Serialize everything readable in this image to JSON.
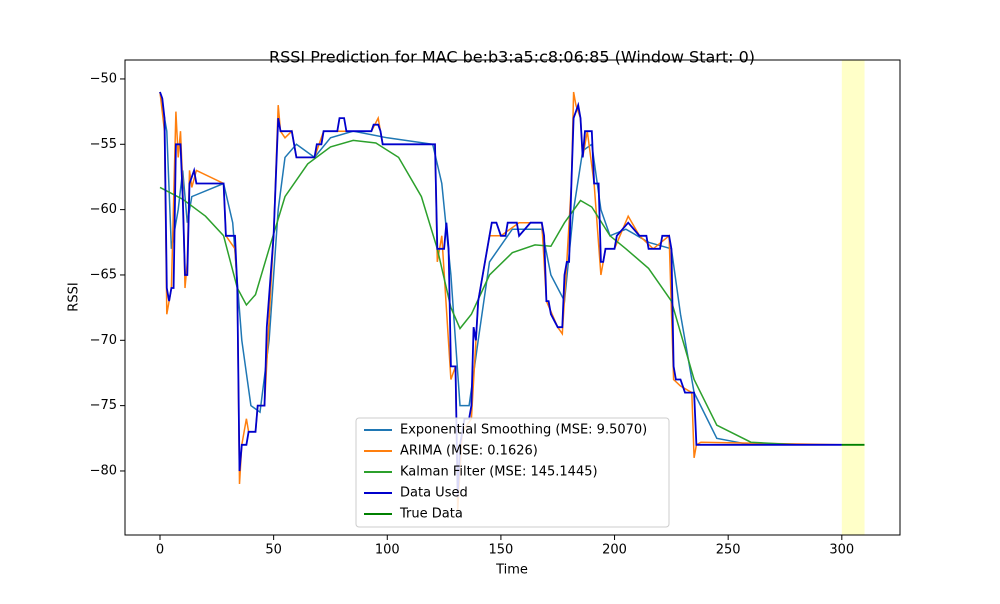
{
  "chart_data": {
    "type": "line",
    "title": "RSSI Prediction for MAC be:b3:a5:c8:06:85 (Window Start: 0)",
    "x_label": "Time",
    "y_label": "RSSI",
    "xlim": [
      -15.4,
      325.6
    ],
    "ylim": [
      -84.9,
      -48.55
    ],
    "xticks": [
      0,
      50,
      100,
      150,
      200,
      250,
      300
    ],
    "yticks": [
      {
        "value": -50,
        "label": "−50"
      },
      {
        "value": -55,
        "label": "−55"
      },
      {
        "value": -60,
        "label": "−60"
      },
      {
        "value": -65,
        "label": "−65"
      },
      {
        "value": -70,
        "label": "−70"
      },
      {
        "value": -75,
        "label": "−75"
      },
      {
        "value": -80,
        "label": "−80"
      }
    ],
    "shaded_region": {
      "x": [
        300,
        310
      ],
      "color": "#ffffc8"
    },
    "series": [
      {
        "name": "Exponential Smoothing (MSE: 9.5070)",
        "color": "#1f77b4",
        "x": [
          0,
          3,
          5,
          8,
          10,
          12,
          14,
          28,
          32,
          36,
          40,
          44,
          48,
          52,
          55,
          60,
          68,
          75,
          85,
          100,
          120,
          124,
          128,
          132,
          136,
          140,
          145,
          155,
          168,
          172,
          178,
          182,
          186,
          190,
          194,
          198,
          205,
          215,
          225,
          229,
          235,
          245,
          260,
          300
        ],
        "values": [
          -51,
          -54,
          -63,
          -60,
          -57,
          -61,
          -59,
          -58,
          -61,
          -70,
          -75,
          -75.5,
          -70,
          -60,
          -56,
          -55,
          -56,
          -54.5,
          -54,
          -54.5,
          -55,
          -58,
          -65,
          -75,
          -75,
          -70,
          -64,
          -61.5,
          -61.5,
          -65,
          -67,
          -60,
          -55.5,
          -55,
          -60,
          -62,
          -61.5,
          -62.5,
          -63,
          -68,
          -74,
          -77.5,
          -78,
          -78
        ]
      },
      {
        "name": "ARIMA (MSE: 0.1626)",
        "color": "#ff7f0e",
        "x": [
          0,
          2,
          3,
          5,
          7,
          8,
          9,
          10,
          11,
          12,
          13,
          14,
          16,
          28,
          29,
          33,
          34,
          35,
          36,
          38,
          39,
          42,
          43,
          46,
          50,
          52,
          53,
          55,
          58,
          60,
          68,
          72,
          78,
          82,
          93,
          96,
          98,
          121,
          122,
          124,
          128,
          130,
          131,
          133,
          137,
          140,
          145,
          150,
          158,
          168,
          170,
          175,
          177,
          179,
          181,
          182,
          183,
          185,
          186,
          188,
          191,
          194,
          196,
          200,
          206,
          211,
          217,
          224,
          226,
          229,
          234,
          235,
          236,
          238,
          300
        ],
        "values": [
          -51,
          -54,
          -68,
          -66,
          -52.5,
          -56,
          -54,
          -58,
          -66,
          -64,
          -57,
          -58.3,
          -57,
          -58,
          -62,
          -63,
          -66,
          -81,
          -78,
          -76,
          -77,
          -77,
          -75,
          -75,
          -62,
          -52,
          -54,
          -54.5,
          -54,
          -56,
          -56,
          -54,
          -54,
          -54,
          -54,
          -53,
          -55,
          -55,
          -64,
          -62,
          -73,
          -72,
          -83,
          -77,
          -76,
          -67,
          -62,
          -62,
          -61,
          -61,
          -67,
          -69,
          -69.5,
          -64,
          -58,
          -51,
          -52,
          -53,
          -56,
          -54,
          -58,
          -65,
          -63,
          -63,
          -60.5,
          -62,
          -63,
          -62,
          -73,
          -73.5,
          -74,
          -79,
          -78,
          -77.8,
          -78
        ]
      },
      {
        "name": "Kalman Filter (MSE: 145.1445)",
        "color": "#2ca02c",
        "x": [
          0,
          10,
          20,
          28,
          34,
          38,
          42,
          48,
          55,
          65,
          75,
          85,
          95,
          105,
          115,
          122,
          128,
          132,
          137,
          145,
          155,
          165,
          172,
          178,
          185,
          190,
          198,
          205,
          215,
          225,
          235,
          245,
          260,
          280,
          300
        ],
        "values": [
          -58.3,
          -59.2,
          -60.5,
          -62,
          -66,
          -67.3,
          -66.5,
          -63,
          -59,
          -56.5,
          -55.2,
          -54.7,
          -54.9,
          -56,
          -59,
          -63,
          -67.5,
          -69.1,
          -68,
          -65,
          -63.3,
          -62.7,
          -62.8,
          -61,
          -59.3,
          -59.8,
          -62,
          -63,
          -64.5,
          -67,
          -73,
          -76.5,
          -77.8,
          -78,
          -78
        ]
      },
      {
        "name": "Data Used",
        "color": "#0000cc",
        "x": [
          0,
          1,
          2,
          3,
          4,
          5,
          6,
          7,
          9,
          10,
          11,
          12,
          13,
          15,
          16,
          28,
          29,
          33,
          34,
          35,
          36,
          38,
          39,
          42,
          43,
          46,
          47,
          50,
          52,
          53,
          58,
          59,
          60,
          68,
          69,
          71,
          72,
          78,
          79,
          81,
          82,
          93,
          94,
          96,
          97,
          98,
          121,
          122,
          125,
          126,
          127,
          128,
          130,
          131,
          132,
          133,
          134,
          136,
          137,
          138,
          139,
          140,
          142,
          145,
          146,
          148,
          150,
          152,
          153,
          157,
          158,
          163,
          168,
          169,
          170,
          171,
          172,
          175,
          177,
          178,
          179,
          180,
          181,
          182,
          184,
          185,
          186,
          187,
          190,
          191,
          193,
          194,
          195,
          196,
          200,
          201,
          206,
          211,
          214,
          215,
          217,
          220,
          221,
          224,
          225,
          226,
          227,
          229,
          231,
          235,
          236,
          238,
          300
        ],
        "values": [
          -51,
          -51.5,
          -53,
          -66,
          -67,
          -66,
          -66,
          -55,
          -55,
          -59,
          -65,
          -65,
          -58,
          -57,
          -58,
          -58,
          -62,
          -62,
          -66,
          -80,
          -78,
          -78,
          -77,
          -77,
          -75,
          -75,
          -69,
          -62,
          -53,
          -54,
          -54,
          -55,
          -56,
          -56,
          -55,
          -55,
          -54,
          -54,
          -53,
          -53,
          -54,
          -54,
          -53.5,
          -53.5,
          -54,
          -55,
          -55,
          -63,
          -63,
          -61,
          -63,
          -72,
          -72,
          -82,
          -78,
          -77,
          -76,
          -76,
          -75,
          -69,
          -70,
          -67,
          -65,
          -62,
          -61,
          -61,
          -62,
          -62,
          -61,
          -61,
          -62,
          -61,
          -61,
          -62,
          -67,
          -67,
          -68,
          -69,
          -69,
          -65,
          -64,
          -64,
          -58,
          -53,
          -52,
          -53,
          -56,
          -54,
          -54,
          -58,
          -58,
          -64,
          -64,
          -63,
          -63,
          -62,
          -61,
          -62,
          -62,
          -63,
          -63,
          -63,
          -62,
          -62,
          -63,
          -72,
          -73,
          -73,
          -74,
          -74,
          -78,
          -78,
          -78
        ]
      },
      {
        "name": "True Data",
        "color": "#008000",
        "x": [
          300,
          310
        ],
        "values": [
          -78,
          -78
        ]
      }
    ]
  }
}
